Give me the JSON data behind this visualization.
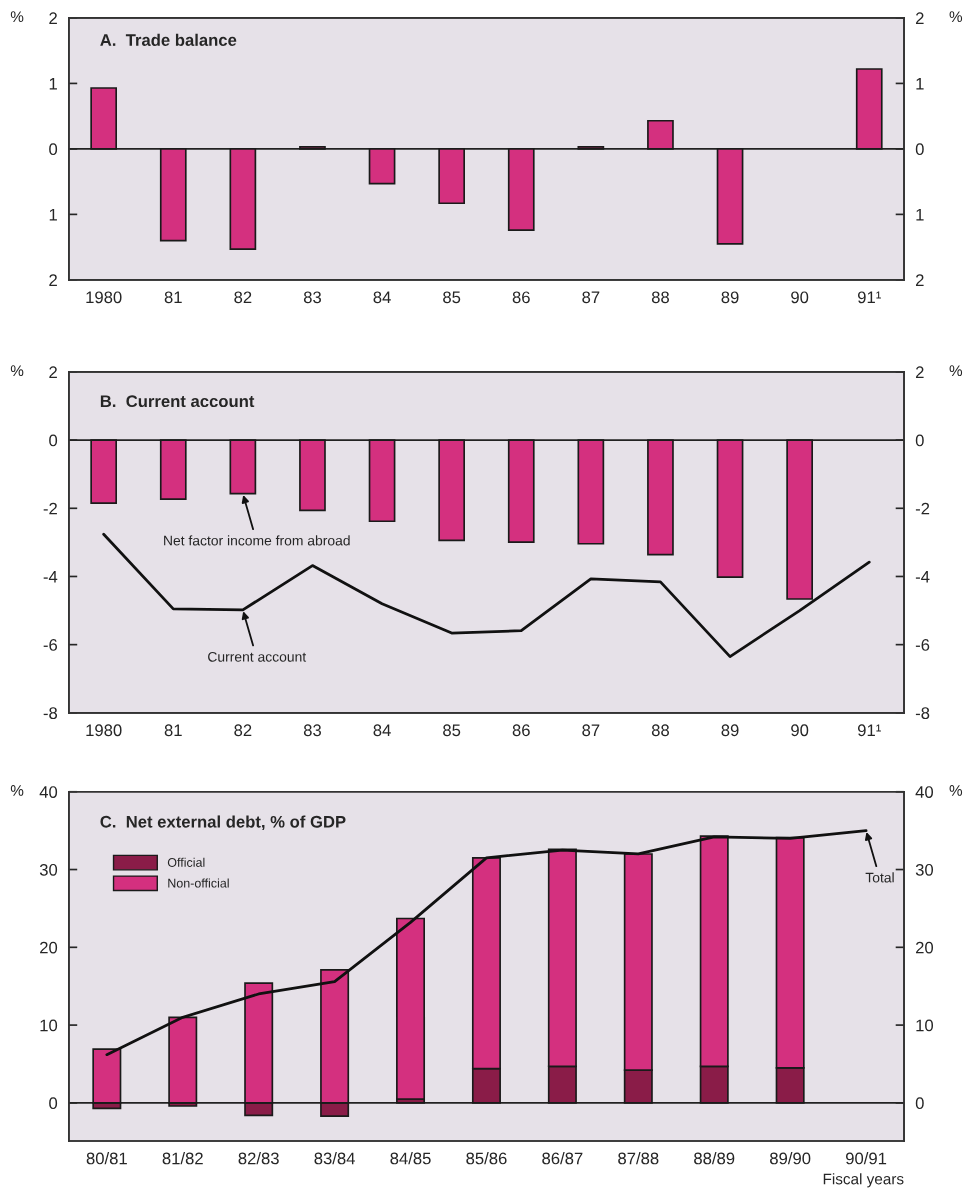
{
  "chart_data": [
    {
      "type": "bar",
      "title": "A.  Trade balance",
      "ylabel": "%",
      "y2label": "%",
      "categories": [
        "1980",
        "81",
        "82",
        "83",
        "84",
        "85",
        "86",
        "87",
        "88",
        "89",
        "90",
        "91¹"
      ],
      "series": [
        {
          "type": "bar",
          "color": "#d4307f",
          "values": [
            0.93,
            -1.4,
            -1.53,
            0.03,
            -0.53,
            -0.83,
            -1.24,
            0.03,
            0.43,
            -1.45,
            null,
            1.22
          ]
        }
      ],
      "ylim": [
        -2,
        2
      ],
      "yticks": [
        2,
        1,
        0,
        {
          "value": -1,
          "label": "1"
        },
        {
          "value": -2,
          "label": "2"
        }
      ],
      "y2lim": [
        -2,
        2
      ],
      "y2ticks": [
        2,
        1,
        0,
        {
          "value": -1,
          "label": "1"
        },
        {
          "value": -2,
          "label": "2"
        }
      ],
      "ref_lines": [
        {
          "axis": "y",
          "value": 0,
          "color": "#222222"
        }
      ]
    },
    {
      "type": "bar",
      "title": "B.  Current account",
      "ylabel": "%",
      "y2label": "%",
      "categories": [
        "1980",
        "81",
        "82",
        "83",
        "84",
        "85",
        "86",
        "87",
        "88",
        "89",
        "90",
        "91¹"
      ],
      "series": [
        {
          "type": "bar",
          "color": "#d4307f",
          "values": [
            -1.85,
            -1.73,
            -1.57,
            -2.06,
            -2.38,
            -2.94,
            -2.99,
            -3.04,
            -3.36,
            -4.02,
            -4.66,
            null
          ]
        },
        {
          "type": "line",
          "color": "#111111",
          "values": [
            -2.76,
            -4.95,
            -4.98,
            -3.68,
            -4.8,
            -5.66,
            -5.59,
            -4.07,
            -4.16,
            -6.35,
            -5.0,
            -3.58
          ]
        }
      ],
      "ylim": [
        -8,
        2
      ],
      "yticks": [
        2,
        0,
        -2,
        -4,
        -6,
        -8
      ],
      "y2lim": [
        -8,
        2
      ],
      "y2ticks": [
        2,
        0,
        -2,
        -4,
        -6,
        -8
      ],
      "ref_lines": [
        {
          "axis": "y",
          "value": 0,
          "color": "#222222"
        }
      ],
      "annotations": [
        {
          "text": "Net factor income from abroad",
          "x": "82",
          "y": -1.57
        },
        {
          "text": "Current account",
          "x": "82",
          "y": -4.98
        }
      ]
    },
    {
      "type": "bar",
      "title": "C.  Net external debt, % of GDP",
      "ylabel": "%",
      "y2label": "%",
      "xlabel": "Fiscal years",
      "categories": [
        "80/81",
        "81/82",
        "82/83",
        "83/84",
        "84/85",
        "85/86",
        "86/87",
        "87/88",
        "88/89",
        "89/90",
        "90/91"
      ],
      "stacked": true,
      "legend": "top left",
      "series": [
        {
          "type": "bar",
          "name": "Official",
          "color": "#8a1c48",
          "values": [
            -0.7,
            -0.4,
            -1.6,
            -1.7,
            0.5,
            4.4,
            4.7,
            4.2,
            4.7,
            4.5,
            null
          ]
        },
        {
          "type": "bar",
          "name": "Non-official",
          "color": "#d4307f",
          "values": [
            6.9,
            11.0,
            15.4,
            17.1,
            23.2,
            27.1,
            27.9,
            27.8,
            29.6,
            29.6,
            null
          ]
        },
        {
          "type": "line",
          "color": "#111111",
          "values": [
            6.2,
            11.0,
            14.0,
            15.6,
            23.2,
            31.5,
            32.5,
            32.0,
            34.2,
            34.0,
            35.0
          ]
        }
      ],
      "ylim": [
        -4.9,
        40
      ],
      "yticks": [
        0,
        10,
        20,
        30,
        40
      ],
      "y2lim": [
        -4.9,
        40
      ],
      "y2ticks": [
        0,
        10,
        20,
        30,
        40
      ],
      "ref_lines": [
        {
          "axis": "y",
          "value": 0,
          "color": "#222222"
        }
      ],
      "annotations": [
        {
          "text": "Total",
          "x": "90/91",
          "y": 35.0
        }
      ]
    }
  ]
}
